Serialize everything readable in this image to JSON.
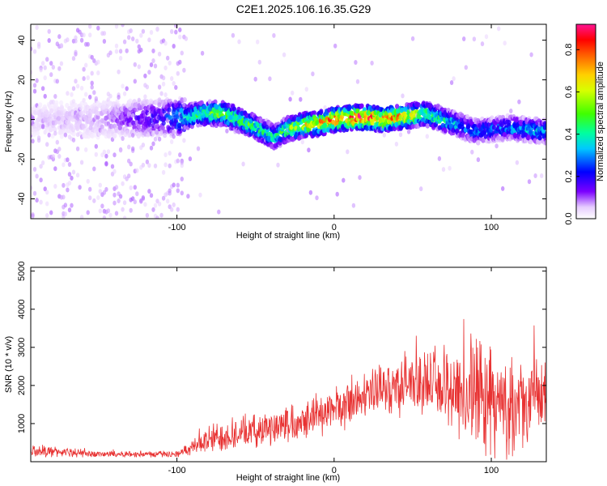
{
  "title": "C2E1.2025.106.16.35.G29",
  "chart_data": [
    {
      "type": "heatmap",
      "xlabel": "Height of straight line (km)",
      "ylabel": "Frequency (Hz)",
      "xlim": [
        -193,
        135
      ],
      "ylim": [
        -50,
        48
      ],
      "xticks": [
        -100,
        0,
        100
      ],
      "yticks": [
        -40,
        -20,
        0,
        20,
        40
      ],
      "colorbar": {
        "label": "Normalized spectral amplitude",
        "range": [
          0,
          0.92
        ],
        "ticks": [
          0.0,
          0.2,
          0.4,
          0.6,
          0.8
        ]
      },
      "ridge": {
        "description": "frequency centre of the bright band versus height",
        "x": [
          -193,
          -150,
          -110,
          -95,
          -85,
          -70,
          -55,
          -45,
          -38,
          -30,
          -20,
          -10,
          0,
          10,
          20,
          30,
          40,
          50,
          58,
          65,
          72,
          80,
          90,
          100,
          110,
          120,
          135
        ],
        "y": [
          0,
          0,
          1,
          1,
          3,
          3,
          -2,
          -6,
          -9,
          -5,
          -3,
          -2,
          0,
          1,
          1,
          0,
          1,
          2,
          3,
          1,
          -1,
          -3,
          -6,
          -5,
          -4,
          -5,
          -6
        ],
        "peak_amplitude": [
          0.05,
          0.08,
          0.2,
          0.4,
          0.5,
          0.55,
          0.5,
          0.45,
          0.4,
          0.55,
          0.65,
          0.75,
          0.85,
          0.9,
          0.9,
          0.85,
          0.8,
          0.65,
          0.55,
          0.45,
          0.4,
          0.35,
          0.3,
          0.3,
          0.32,
          0.35,
          0.35
        ]
      }
    },
    {
      "type": "line",
      "xlabel": "Height of straight line (km)",
      "ylabel": "SNR (10 * v/v)",
      "xlim": [
        -193,
        135
      ],
      "ylim": [
        0,
        5100
      ],
      "xticks": [
        -100,
        0,
        100
      ],
      "yticks": [
        1000,
        2000,
        3000,
        4000,
        5000
      ],
      "color": "#e83232",
      "trend": {
        "x": [
          -193,
          -150,
          -100,
          -90,
          -80,
          -70,
          -60,
          -50,
          -40,
          -30,
          -20,
          -10,
          0,
          10,
          20,
          30,
          40,
          50,
          60,
          70,
          80,
          90,
          100,
          110,
          120,
          135
        ],
        "mean": [
          300,
          200,
          200,
          380,
          550,
          700,
          750,
          800,
          900,
          1000,
          1150,
          1250,
          1400,
          1500,
          1700,
          1850,
          2000,
          2100,
          2050,
          1950,
          1900,
          1800,
          1600,
          1400,
          1500,
          1700
        ],
        "spread": [
          200,
          100,
          100,
          200,
          500,
          500,
          500,
          500,
          550,
          600,
          600,
          650,
          700,
          700,
          750,
          800,
          900,
          1000,
          1100,
          1200,
          1600,
          1900,
          1700,
          1500,
          1300,
          1100
        ]
      }
    }
  ]
}
